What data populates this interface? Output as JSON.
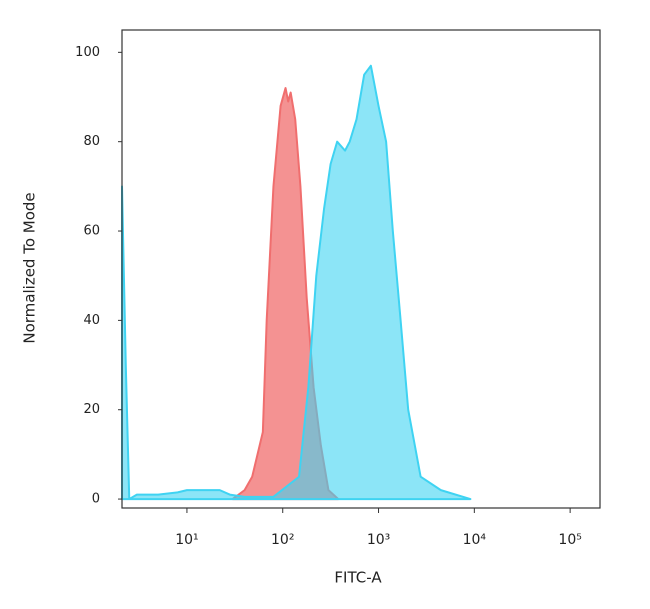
{
  "chart_data": {
    "type": "area",
    "xlabel": "FITC-A",
    "ylabel": "Normalized To Mode",
    "xscale": "log",
    "xlim": [
      2.1,
      205000
    ],
    "ylim": [
      -2,
      105
    ],
    "xticks": [
      {
        "value": 10,
        "label": "10¹"
      },
      {
        "value": 100,
        "label": "10²"
      },
      {
        "value": 1000,
        "label": "10³"
      },
      {
        "value": 10000,
        "label": "10⁴"
      },
      {
        "value": 100000,
        "label": "10⁵"
      }
    ],
    "yticks": [
      0,
      20,
      40,
      60,
      80,
      100
    ],
    "series": [
      {
        "color": "#f06e6e",
        "x": [
          30,
          40,
          48,
          62,
          68,
          80,
          95,
          107,
          114,
          121,
          135,
          153,
          178,
          210,
          250,
          300,
          380
        ],
        "values": [
          0,
          2,
          5,
          15,
          40,
          70,
          88,
          92,
          89,
          91,
          85,
          70,
          45,
          25,
          12,
          2,
          0
        ]
      },
      {
        "color": "#3fd3f2",
        "x": [
          2.1,
          2.3,
          2.5,
          3,
          5,
          8,
          10,
          15,
          22,
          28,
          40,
          80,
          148,
          185,
          224,
          270,
          316,
          370,
          447,
          500,
          589,
          708,
          832,
          1000,
          1200,
          1410,
          1700,
          2040,
          2750,
          4470,
          9100
        ],
        "values": [
          70,
          30,
          0,
          1,
          1,
          1.5,
          2,
          2,
          2,
          1,
          0.5,
          0.5,
          5,
          25,
          50,
          65,
          75,
          80,
          78,
          80,
          85,
          95,
          97,
          88,
          80,
          60,
          40,
          20,
          5,
          2,
          0
        ]
      }
    ]
  }
}
